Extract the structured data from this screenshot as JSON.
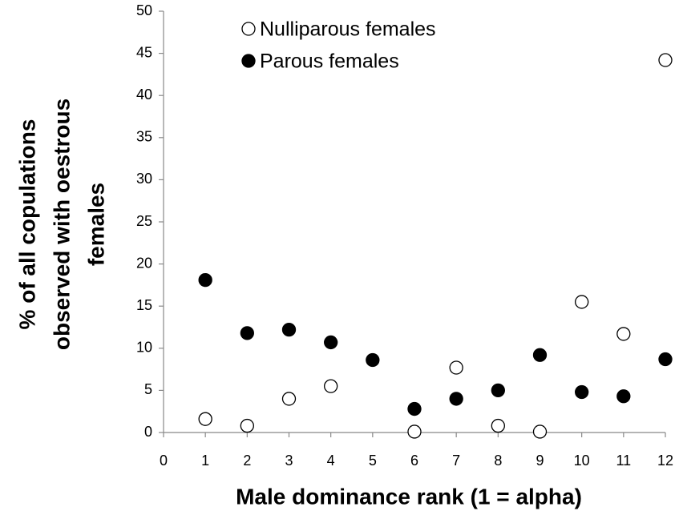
{
  "chart_data": {
    "type": "scatter",
    "xlabel": "Male dominance rank (1 = alpha)",
    "ylabel": [
      "% of all copulations",
      "observed with oestrous",
      "females"
    ],
    "xlim": [
      0,
      12
    ],
    "xticks": [
      0,
      1,
      2,
      3,
      4,
      5,
      6,
      7,
      8,
      9,
      10,
      11,
      12
    ],
    "ylim": [
      0,
      50
    ],
    "yticks": [
      0,
      5,
      10,
      15,
      20,
      25,
      30,
      35,
      40,
      45,
      50
    ],
    "grid": false,
    "legend": "upper left",
    "series": [
      {
        "name": "Nulliparous females",
        "color": "#000000",
        "marker": "open",
        "x": [
          1,
          2,
          3,
          4,
          6,
          7,
          8,
          9,
          10,
          11,
          12
        ],
        "values": [
          1.6,
          0.8,
          4.0,
          5.5,
          0.1,
          7.7,
          0.8,
          0.1,
          15.5,
          11.7,
          44.2
        ]
      },
      {
        "name": "Parous females",
        "color": "#000000",
        "marker": "filled",
        "x": [
          1,
          2,
          3,
          4,
          5,
          6,
          7,
          8,
          9,
          10,
          11,
          12
        ],
        "values": [
          18.1,
          11.8,
          12.2,
          10.7,
          8.6,
          2.8,
          4.0,
          5.0,
          9.2,
          4.8,
          4.3,
          8.7
        ]
      }
    ]
  }
}
